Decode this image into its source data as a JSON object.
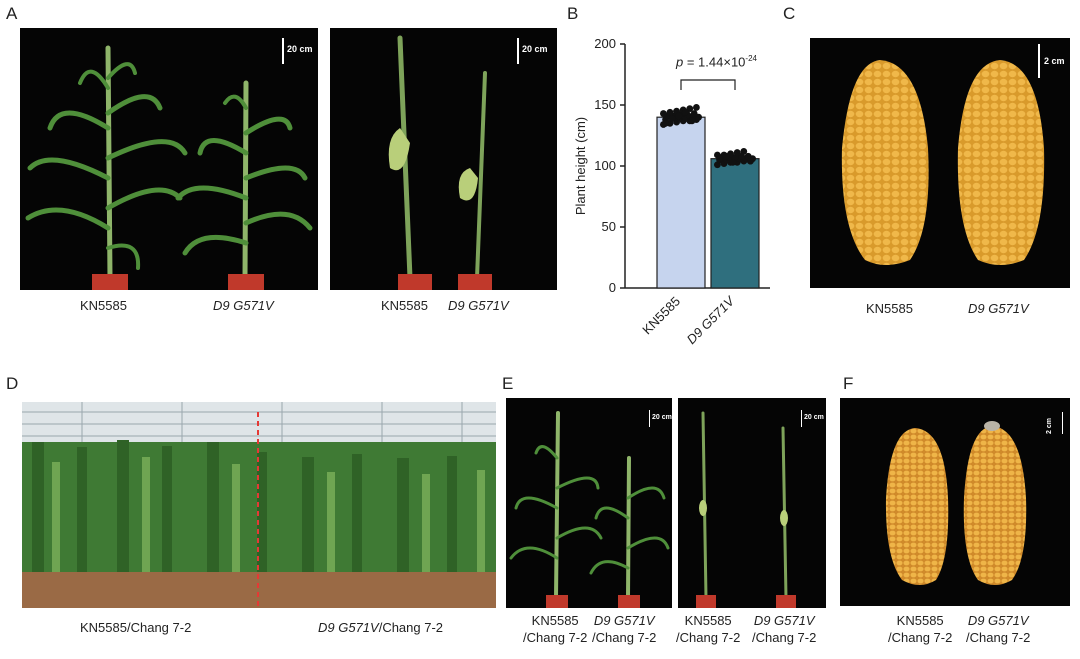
{
  "panels": {
    "A": {
      "letter": "A",
      "scale_left": "20 cm",
      "scale_right": "20 cm",
      "labels": [
        "KN5585",
        "D9 G571V",
        "KN5585",
        "D9 G571V"
      ]
    },
    "B": {
      "letter": "B",
      "p_prefix": "p",
      "p_value": " = 1.44×10",
      "p_exp": "-24"
    },
    "C": {
      "letter": "C",
      "scale": "2 cm",
      "labels": [
        "KN5585",
        "D9 G571V"
      ]
    },
    "D": {
      "letter": "D",
      "label_left": "KN5585/Chang 7-2",
      "label_right_italic": "D9 G571V",
      "label_right_rest": "/Chang 7-2"
    },
    "E": {
      "letter": "E",
      "scale_left": "20 cm",
      "scale_right": "20 cm",
      "labels": [
        {
          "line1": "KN5585",
          "line2": "/Chang 7-2"
        },
        {
          "line1": "D9 G571V",
          "line2": "/Chang 7-2"
        },
        {
          "line1": "KN5585",
          "line2": "/Chang 7-2"
        },
        {
          "line1": "D9 G571V",
          "line2": "/Chang 7-2"
        }
      ]
    },
    "F": {
      "letter": "F",
      "scale": "2 cm",
      "labels": [
        {
          "line1": "KN5585",
          "line2": "/Chang 7-2"
        },
        {
          "line1": "D9 G571V",
          "line2": "/Chang 7-2"
        }
      ]
    }
  },
  "chart_data": {
    "type": "bar",
    "categories": [
      "KN5585",
      "D9 G571V"
    ],
    "values": [
      140,
      106
    ],
    "errors": [
      5,
      3
    ],
    "ylabel": "Plant height (cm)",
    "ylim": [
      0,
      200
    ],
    "yticks": [
      0,
      50,
      100,
      150,
      200
    ],
    "colors": [
      "#c6d4ee",
      "#2f6f7e"
    ],
    "points": [
      [
        134,
        135,
        136,
        137,
        137,
        138,
        138,
        139,
        139,
        140,
        140,
        140,
        141,
        141,
        142,
        142,
        143,
        143,
        144,
        145,
        146,
        147,
        148,
        135,
        139,
        141,
        144,
        137
      ],
      [
        101,
        102,
        103,
        103,
        104,
        104,
        105,
        105,
        105,
        106,
        106,
        106,
        107,
        107,
        107,
        108,
        108,
        109,
        109,
        110,
        111,
        112,
        104,
        106,
        108,
        103
      ]
    ],
    "significance": "p = 1.44×10-24"
  }
}
